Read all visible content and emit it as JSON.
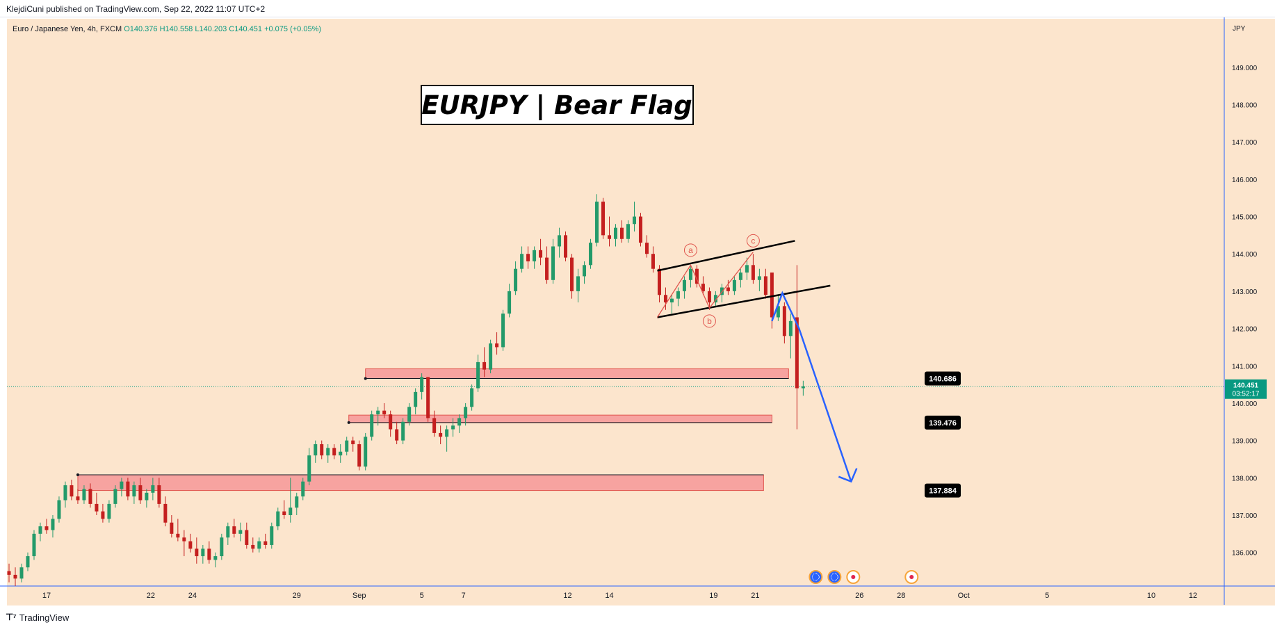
{
  "header": {
    "publisher": "KlejdiCuni published on TradingView.com, Sep 22, 2022 11:07 UTC+2",
    "symbol_line": "Euro / Japanese Yen, 4h, FXCM",
    "ohlc": {
      "open": "O140.376",
      "high": "H140.558",
      "low": "L140.203",
      "close": "C140.451",
      "change": "+0.075 (+0.05%)"
    }
  },
  "footer": {
    "brand": "TradingView"
  },
  "chart_data": {
    "type": "candlestick",
    "title": "EURJPY | Bear Flag",
    "currency_label": "JPY",
    "ylim": [
      135.1,
      150.3
    ],
    "y_ticks": [
      "136.000",
      "137.000",
      "138.000",
      "139.000",
      "140.000",
      "141.000",
      "142.000",
      "143.000",
      "144.000",
      "145.000",
      "146.000",
      "147.000",
      "148.000",
      "149.000"
    ],
    "x_ticks": [
      {
        "label": "17",
        "x": 17
      },
      {
        "label": "22",
        "x": 22
      },
      {
        "label": "24",
        "x": 24
      },
      {
        "label": "29",
        "x": 29
      },
      {
        "label": "Sep",
        "x": 32
      },
      {
        "label": "5",
        "x": 35
      },
      {
        "label": "7",
        "x": 37
      },
      {
        "label": "12",
        "x": 42
      },
      {
        "label": "14",
        "x": 44
      },
      {
        "label": "19",
        "x": 49
      },
      {
        "label": "21",
        "x": 51
      },
      {
        "label": "26",
        "x": 56
      },
      {
        "label": "28",
        "x": 58
      },
      {
        "label": "Oct",
        "x": 61
      },
      {
        "label": "5",
        "x": 65
      },
      {
        "label": "10",
        "x": 70
      },
      {
        "label": "12",
        "x": 72
      }
    ],
    "xlim": [
      15.1,
      73.5
    ],
    "current_price": {
      "value": 140.451,
      "label": "140.451",
      "countdown": "03:52:17"
    },
    "zones": [
      {
        "top": 140.92,
        "bottom": 140.66,
        "label": "140.686",
        "x_start": 32.3,
        "x_end": 52.6
      },
      {
        "top": 139.68,
        "bottom": 139.48,
        "label": "139.476",
        "x_start": 31.5,
        "x_end": 51.8
      },
      {
        "top": 138.08,
        "bottom": 137.66,
        "label": "137.884",
        "x_start": 18.5,
        "x_end": 51.4
      }
    ],
    "candles": [
      [
        139.9,
        140.0,
        140.2,
        140.6,
        140.62,
        140.4,
        140.3,
        140.4
      ],
      [
        140.0,
        140.22,
        140.6,
        140.7,
        140.3,
        140.18,
        140.4,
        140.3
      ],
      [
        140.3,
        140.4,
        140.7,
        140.6,
        140.4,
        140.2,
        140.5,
        140.5
      ],
      [
        140.0,
        140.3,
        140.6,
        140.7,
        140.2,
        140.1,
        140.3,
        140.6
      ],
      [
        140.5,
        140.55,
        140.9,
        140.8,
        140.4,
        140.2,
        140.55,
        140.7
      ],
      [
        140.6,
        140.7,
        140.9,
        140.65,
        140.4,
        140.4,
        140.8,
        140.4
      ],
      [
        140.6,
        140.8,
        140.9,
        140.7,
        140.5,
        140.4,
        140.75,
        140.7
      ]
    ],
    "candle_series": [
      {
        "x": 15.2,
        "o": 135.5,
        "h": 135.7,
        "l": 135.2,
        "c": 135.4
      },
      {
        "x": 15.5,
        "o": 135.4,
        "h": 135.6,
        "l": 135.1,
        "c": 135.3
      },
      {
        "x": 15.8,
        "o": 135.3,
        "h": 135.7,
        "l": 135.2,
        "c": 135.6
      },
      {
        "x": 16.1,
        "o": 135.6,
        "h": 136.0,
        "l": 135.5,
        "c": 135.9
      },
      {
        "x": 16.4,
        "o": 135.9,
        "h": 136.6,
        "l": 135.8,
        "c": 136.5
      },
      {
        "x": 16.7,
        "o": 136.5,
        "h": 136.8,
        "l": 136.3,
        "c": 136.7
      },
      {
        "x": 17.0,
        "o": 136.7,
        "h": 136.9,
        "l": 136.5,
        "c": 136.6
      },
      {
        "x": 17.3,
        "o": 136.6,
        "h": 137.0,
        "l": 136.4,
        "c": 136.9
      },
      {
        "x": 17.6,
        "o": 136.9,
        "h": 137.5,
        "l": 136.8,
        "c": 137.4
      },
      {
        "x": 17.9,
        "o": 137.4,
        "h": 137.9,
        "l": 137.2,
        "c": 137.8
      },
      {
        "x": 18.2,
        "o": 137.8,
        "h": 137.95,
        "l": 137.4,
        "c": 137.5
      },
      {
        "x": 18.5,
        "o": 137.5,
        "h": 137.7,
        "l": 137.3,
        "c": 137.4
      },
      {
        "x": 18.8,
        "o": 137.4,
        "h": 137.8,
        "l": 137.3,
        "c": 137.7
      },
      {
        "x": 19.1,
        "o": 137.7,
        "h": 137.85,
        "l": 137.2,
        "c": 137.3
      },
      {
        "x": 19.4,
        "o": 137.3,
        "h": 137.6,
        "l": 137.0,
        "c": 137.1
      },
      {
        "x": 19.7,
        "o": 137.1,
        "h": 137.3,
        "l": 136.8,
        "c": 136.9
      },
      {
        "x": 20.0,
        "o": 136.9,
        "h": 137.4,
        "l": 136.8,
        "c": 137.3
      },
      {
        "x": 20.3,
        "o": 137.3,
        "h": 137.8,
        "l": 137.2,
        "c": 137.7
      },
      {
        "x": 20.6,
        "o": 137.7,
        "h": 138.0,
        "l": 137.5,
        "c": 137.9
      },
      {
        "x": 20.9,
        "o": 137.9,
        "h": 138.0,
        "l": 137.4,
        "c": 137.5
      },
      {
        "x": 21.2,
        "o": 137.5,
        "h": 137.9,
        "l": 137.3,
        "c": 137.8
      },
      {
        "x": 21.5,
        "o": 137.8,
        "h": 138.0,
        "l": 137.3,
        "c": 137.4
      },
      {
        "x": 21.8,
        "o": 137.4,
        "h": 137.7,
        "l": 137.2,
        "c": 137.6
      },
      {
        "x": 22.1,
        "o": 137.6,
        "h": 138.0,
        "l": 137.4,
        "c": 137.8
      },
      {
        "x": 22.4,
        "o": 137.8,
        "h": 138.0,
        "l": 137.2,
        "c": 137.3
      },
      {
        "x": 22.7,
        "o": 137.3,
        "h": 137.5,
        "l": 136.7,
        "c": 136.8
      },
      {
        "x": 23.0,
        "o": 136.8,
        "h": 137.0,
        "l": 136.4,
        "c": 136.5
      },
      {
        "x": 23.3,
        "o": 136.5,
        "h": 136.9,
        "l": 136.3,
        "c": 136.4
      },
      {
        "x": 23.6,
        "o": 136.4,
        "h": 136.6,
        "l": 135.9,
        "c": 136.3
      },
      {
        "x": 23.9,
        "o": 136.3,
        "h": 136.5,
        "l": 136.0,
        "c": 136.1
      },
      {
        "x": 24.2,
        "o": 136.1,
        "h": 136.4,
        "l": 135.7,
        "c": 135.9
      },
      {
        "x": 24.5,
        "o": 135.9,
        "h": 136.2,
        "l": 135.7,
        "c": 136.1
      },
      {
        "x": 24.8,
        "o": 136.1,
        "h": 136.3,
        "l": 135.7,
        "c": 135.8
      },
      {
        "x": 25.1,
        "o": 135.8,
        "h": 136.0,
        "l": 135.6,
        "c": 135.9
      },
      {
        "x": 25.4,
        "o": 135.9,
        "h": 136.5,
        "l": 135.8,
        "c": 136.4
      },
      {
        "x": 25.7,
        "o": 136.4,
        "h": 136.8,
        "l": 136.2,
        "c": 136.7
      },
      {
        "x": 26.0,
        "o": 136.7,
        "h": 136.9,
        "l": 136.4,
        "c": 136.5
      },
      {
        "x": 26.3,
        "o": 136.5,
        "h": 136.8,
        "l": 136.3,
        "c": 136.6
      },
      {
        "x": 26.6,
        "o": 136.6,
        "h": 136.8,
        "l": 136.1,
        "c": 136.2
      },
      {
        "x": 26.9,
        "o": 136.2,
        "h": 136.4,
        "l": 136.0,
        "c": 136.1
      },
      {
        "x": 27.2,
        "o": 136.1,
        "h": 136.4,
        "l": 136.0,
        "c": 136.3
      },
      {
        "x": 27.5,
        "o": 136.3,
        "h": 136.5,
        "l": 136.1,
        "c": 136.2
      },
      {
        "x": 27.8,
        "o": 136.2,
        "h": 136.8,
        "l": 136.1,
        "c": 136.7
      },
      {
        "x": 28.1,
        "o": 136.7,
        "h": 137.2,
        "l": 136.6,
        "c": 137.1
      },
      {
        "x": 28.4,
        "o": 137.1,
        "h": 137.4,
        "l": 136.9,
        "c": 137.0
      },
      {
        "x": 28.7,
        "o": 137.0,
        "h": 138.0,
        "l": 136.8,
        "c": 137.2
      },
      {
        "x": 29.0,
        "o": 137.2,
        "h": 137.6,
        "l": 137.0,
        "c": 137.5
      },
      {
        "x": 29.3,
        "o": 137.5,
        "h": 138.0,
        "l": 137.4,
        "c": 137.9
      },
      {
        "x": 29.6,
        "o": 137.9,
        "h": 138.8,
        "l": 137.8,
        "c": 138.6
      },
      {
        "x": 29.9,
        "o": 138.6,
        "h": 139.0,
        "l": 138.4,
        "c": 138.9
      },
      {
        "x": 30.2,
        "o": 138.9,
        "h": 139.0,
        "l": 138.5,
        "c": 138.6
      },
      {
        "x": 30.5,
        "o": 138.6,
        "h": 138.9,
        "l": 138.4,
        "c": 138.8
      },
      {
        "x": 30.8,
        "o": 138.8,
        "h": 138.9,
        "l": 138.5,
        "c": 138.6
      },
      {
        "x": 31.1,
        "o": 138.6,
        "h": 138.9,
        "l": 138.4,
        "c": 138.7
      },
      {
        "x": 31.4,
        "o": 138.7,
        "h": 139.1,
        "l": 138.6,
        "c": 139.0
      },
      {
        "x": 31.7,
        "o": 139.0,
        "h": 139.1,
        "l": 138.7,
        "c": 138.9
      },
      {
        "x": 32.0,
        "o": 138.9,
        "h": 139.0,
        "l": 138.2,
        "c": 138.3
      },
      {
        "x": 32.3,
        "o": 138.3,
        "h": 139.2,
        "l": 138.2,
        "c": 139.1
      },
      {
        "x": 32.6,
        "o": 139.1,
        "h": 139.8,
        "l": 139.0,
        "c": 139.7
      },
      {
        "x": 32.9,
        "o": 139.7,
        "h": 139.9,
        "l": 139.4,
        "c": 139.8
      },
      {
        "x": 33.2,
        "o": 139.8,
        "h": 140.0,
        "l": 139.6,
        "c": 139.7
      },
      {
        "x": 33.5,
        "o": 139.7,
        "h": 139.8,
        "l": 139.1,
        "c": 139.3
      },
      {
        "x": 33.8,
        "o": 139.3,
        "h": 139.5,
        "l": 138.9,
        "c": 139.0
      },
      {
        "x": 34.1,
        "o": 139.0,
        "h": 139.6,
        "l": 138.9,
        "c": 139.5
      },
      {
        "x": 34.4,
        "o": 139.5,
        "h": 140.0,
        "l": 139.4,
        "c": 139.9
      },
      {
        "x": 34.7,
        "o": 139.9,
        "h": 140.4,
        "l": 139.7,
        "c": 140.3
      },
      {
        "x": 35.0,
        "o": 140.3,
        "h": 140.8,
        "l": 140.1,
        "c": 140.7
      },
      {
        "x": 35.3,
        "o": 140.7,
        "h": 140.7,
        "l": 139.5,
        "c": 139.6
      },
      {
        "x": 35.6,
        "o": 139.6,
        "h": 139.8,
        "l": 139.1,
        "c": 139.2
      },
      {
        "x": 35.9,
        "o": 139.2,
        "h": 139.4,
        "l": 138.9,
        "c": 139.1
      },
      {
        "x": 36.2,
        "o": 139.1,
        "h": 139.4,
        "l": 138.7,
        "c": 139.3
      },
      {
        "x": 36.5,
        "o": 139.3,
        "h": 139.6,
        "l": 139.1,
        "c": 139.4
      },
      {
        "x": 36.8,
        "o": 139.4,
        "h": 139.7,
        "l": 139.2,
        "c": 139.6
      },
      {
        "x": 37.1,
        "o": 139.6,
        "h": 140.0,
        "l": 139.4,
        "c": 139.9
      },
      {
        "x": 37.4,
        "o": 139.9,
        "h": 140.5,
        "l": 139.8,
        "c": 140.4
      },
      {
        "x": 37.7,
        "o": 140.4,
        "h": 141.3,
        "l": 140.3,
        "c": 141.1
      },
      {
        "x": 38.0,
        "o": 141.1,
        "h": 141.5,
        "l": 140.7,
        "c": 140.9
      },
      {
        "x": 38.3,
        "o": 140.9,
        "h": 141.7,
        "l": 140.8,
        "c": 141.6
      },
      {
        "x": 38.6,
        "o": 141.6,
        "h": 141.9,
        "l": 141.3,
        "c": 141.5
      },
      {
        "x": 38.9,
        "o": 141.5,
        "h": 142.5,
        "l": 141.4,
        "c": 142.4
      },
      {
        "x": 39.2,
        "o": 142.4,
        "h": 143.2,
        "l": 142.3,
        "c": 143.0
      },
      {
        "x": 39.5,
        "o": 143.0,
        "h": 143.8,
        "l": 142.9,
        "c": 143.6
      },
      {
        "x": 39.8,
        "o": 143.6,
        "h": 144.2,
        "l": 143.5,
        "c": 144.0
      },
      {
        "x": 40.1,
        "o": 144.0,
        "h": 144.2,
        "l": 143.6,
        "c": 143.8
      },
      {
        "x": 40.4,
        "o": 143.8,
        "h": 144.2,
        "l": 143.6,
        "c": 144.1
      },
      {
        "x": 40.7,
        "o": 144.1,
        "h": 144.4,
        "l": 143.7,
        "c": 143.9
      },
      {
        "x": 41.0,
        "o": 143.9,
        "h": 144.2,
        "l": 143.2,
        "c": 143.3
      },
      {
        "x": 41.3,
        "o": 143.3,
        "h": 144.4,
        "l": 143.2,
        "c": 144.2
      },
      {
        "x": 41.6,
        "o": 144.2,
        "h": 144.7,
        "l": 143.9,
        "c": 144.5
      },
      {
        "x": 41.9,
        "o": 144.5,
        "h": 144.6,
        "l": 143.8,
        "c": 143.9
      },
      {
        "x": 42.2,
        "o": 143.9,
        "h": 144.0,
        "l": 142.8,
        "c": 143.0
      },
      {
        "x": 42.5,
        "o": 143.0,
        "h": 143.6,
        "l": 142.7,
        "c": 143.4
      },
      {
        "x": 42.8,
        "o": 143.4,
        "h": 143.8,
        "l": 143.2,
        "c": 143.7
      },
      {
        "x": 43.1,
        "o": 143.7,
        "h": 144.4,
        "l": 143.6,
        "c": 144.3
      },
      {
        "x": 43.4,
        "o": 144.3,
        "h": 145.6,
        "l": 144.2,
        "c": 145.4
      },
      {
        "x": 43.7,
        "o": 145.4,
        "h": 145.5,
        "l": 144.4,
        "c": 144.5
      },
      {
        "x": 44.0,
        "o": 144.5,
        "h": 145.0,
        "l": 144.2,
        "c": 144.4
      },
      {
        "x": 44.3,
        "o": 144.4,
        "h": 144.8,
        "l": 144.2,
        "c": 144.7
      },
      {
        "x": 44.6,
        "o": 144.7,
        "h": 144.9,
        "l": 144.3,
        "c": 144.4
      },
      {
        "x": 44.9,
        "o": 144.4,
        "h": 144.9,
        "l": 144.3,
        "c": 144.8
      },
      {
        "x": 45.2,
        "o": 144.8,
        "h": 145.4,
        "l": 144.6,
        "c": 145.0
      },
      {
        "x": 45.5,
        "o": 145.0,
        "h": 145.1,
        "l": 144.2,
        "c": 144.3
      },
      {
        "x": 45.8,
        "o": 144.3,
        "h": 144.5,
        "l": 143.9,
        "c": 144.0
      }
    ],
    "candle_series_2": [
      {
        "x": 46.1,
        "o": 144.0,
        "h": 144.2,
        "l": 143.5,
        "c": 143.6
      },
      {
        "x": 46.4,
        "o": 143.6,
        "h": 143.7,
        "l": 142.7,
        "c": 142.9
      },
      {
        "x": 46.7,
        "o": 142.9,
        "h": 143.1,
        "l": 142.5,
        "c": 142.7
      },
      {
        "x": 47.0,
        "o": 142.7,
        "h": 142.9,
        "l": 142.4,
        "c": 142.8
      },
      {
        "x": 47.3,
        "o": 142.8,
        "h": 143.1,
        "l": 142.6,
        "c": 143.0
      },
      {
        "x": 47.6,
        "o": 143.0,
        "h": 143.4,
        "l": 142.8,
        "c": 143.3
      },
      {
        "x": 47.9,
        "o": 143.3,
        "h": 143.7,
        "l": 143.1,
        "c": 143.6
      },
      {
        "x": 48.2,
        "o": 143.6,
        "h": 143.7,
        "l": 143.1,
        "c": 143.2
      },
      {
        "x": 48.5,
        "o": 143.2,
        "h": 143.4,
        "l": 142.9,
        "c": 143.0
      },
      {
        "x": 48.8,
        "o": 143.0,
        "h": 143.1,
        "l": 142.5,
        "c": 142.7
      },
      {
        "x": 49.1,
        "o": 142.7,
        "h": 143.0,
        "l": 142.6,
        "c": 142.9
      },
      {
        "x": 49.4,
        "o": 142.9,
        "h": 143.2,
        "l": 142.7,
        "c": 143.1
      },
      {
        "x": 49.7,
        "o": 143.1,
        "h": 143.3,
        "l": 142.9,
        "c": 143.0
      },
      {
        "x": 50.0,
        "o": 143.0,
        "h": 143.4,
        "l": 142.9,
        "c": 143.3
      },
      {
        "x": 50.3,
        "o": 143.3,
        "h": 143.6,
        "l": 143.1,
        "c": 143.5
      },
      {
        "x": 50.6,
        "o": 143.5,
        "h": 143.9,
        "l": 143.3,
        "c": 143.7
      },
      {
        "x": 50.9,
        "o": 143.7,
        "h": 144.0,
        "l": 143.2,
        "c": 143.3
      },
      {
        "x": 51.2,
        "o": 143.3,
        "h": 143.6,
        "l": 143.0,
        "c": 143.4
      },
      {
        "x": 51.5,
        "o": 143.4,
        "h": 143.6,
        "l": 142.8,
        "c": 142.9
      },
      {
        "x": 51.8,
        "o": 143.5,
        "h": 143.5,
        "l": 142.0,
        "c": 142.3
      },
      {
        "x": 52.1,
        "o": 142.3,
        "h": 142.9,
        "l": 142.2,
        "c": 142.6
      },
      {
        "x": 52.4,
        "o": 142.6,
        "h": 142.7,
        "l": 141.6,
        "c": 141.8
      },
      {
        "x": 52.7,
        "o": 141.8,
        "h": 142.4,
        "l": 141.2,
        "c": 142.2
      },
      {
        "x": 53.0,
        "o": 142.3,
        "h": 143.7,
        "l": 139.3,
        "c": 140.4
      },
      {
        "x": 53.3,
        "o": 140.4,
        "h": 140.6,
        "l": 140.2,
        "c": 140.45
      }
    ],
    "labels": [
      {
        "text": "a",
        "x": 47.9,
        "y": 144.1
      },
      {
        "text": "b",
        "x": 48.8,
        "y": 142.2
      },
      {
        "text": "c",
        "x": 50.9,
        "y": 144.35
      }
    ],
    "events": [
      {
        "x": 53.9,
        "kind": "globe"
      },
      {
        "x": 54.8,
        "kind": "globe"
      },
      {
        "x": 55.7,
        "kind": "dot"
      },
      {
        "x": 58.5,
        "kind": "dot"
      }
    ]
  }
}
